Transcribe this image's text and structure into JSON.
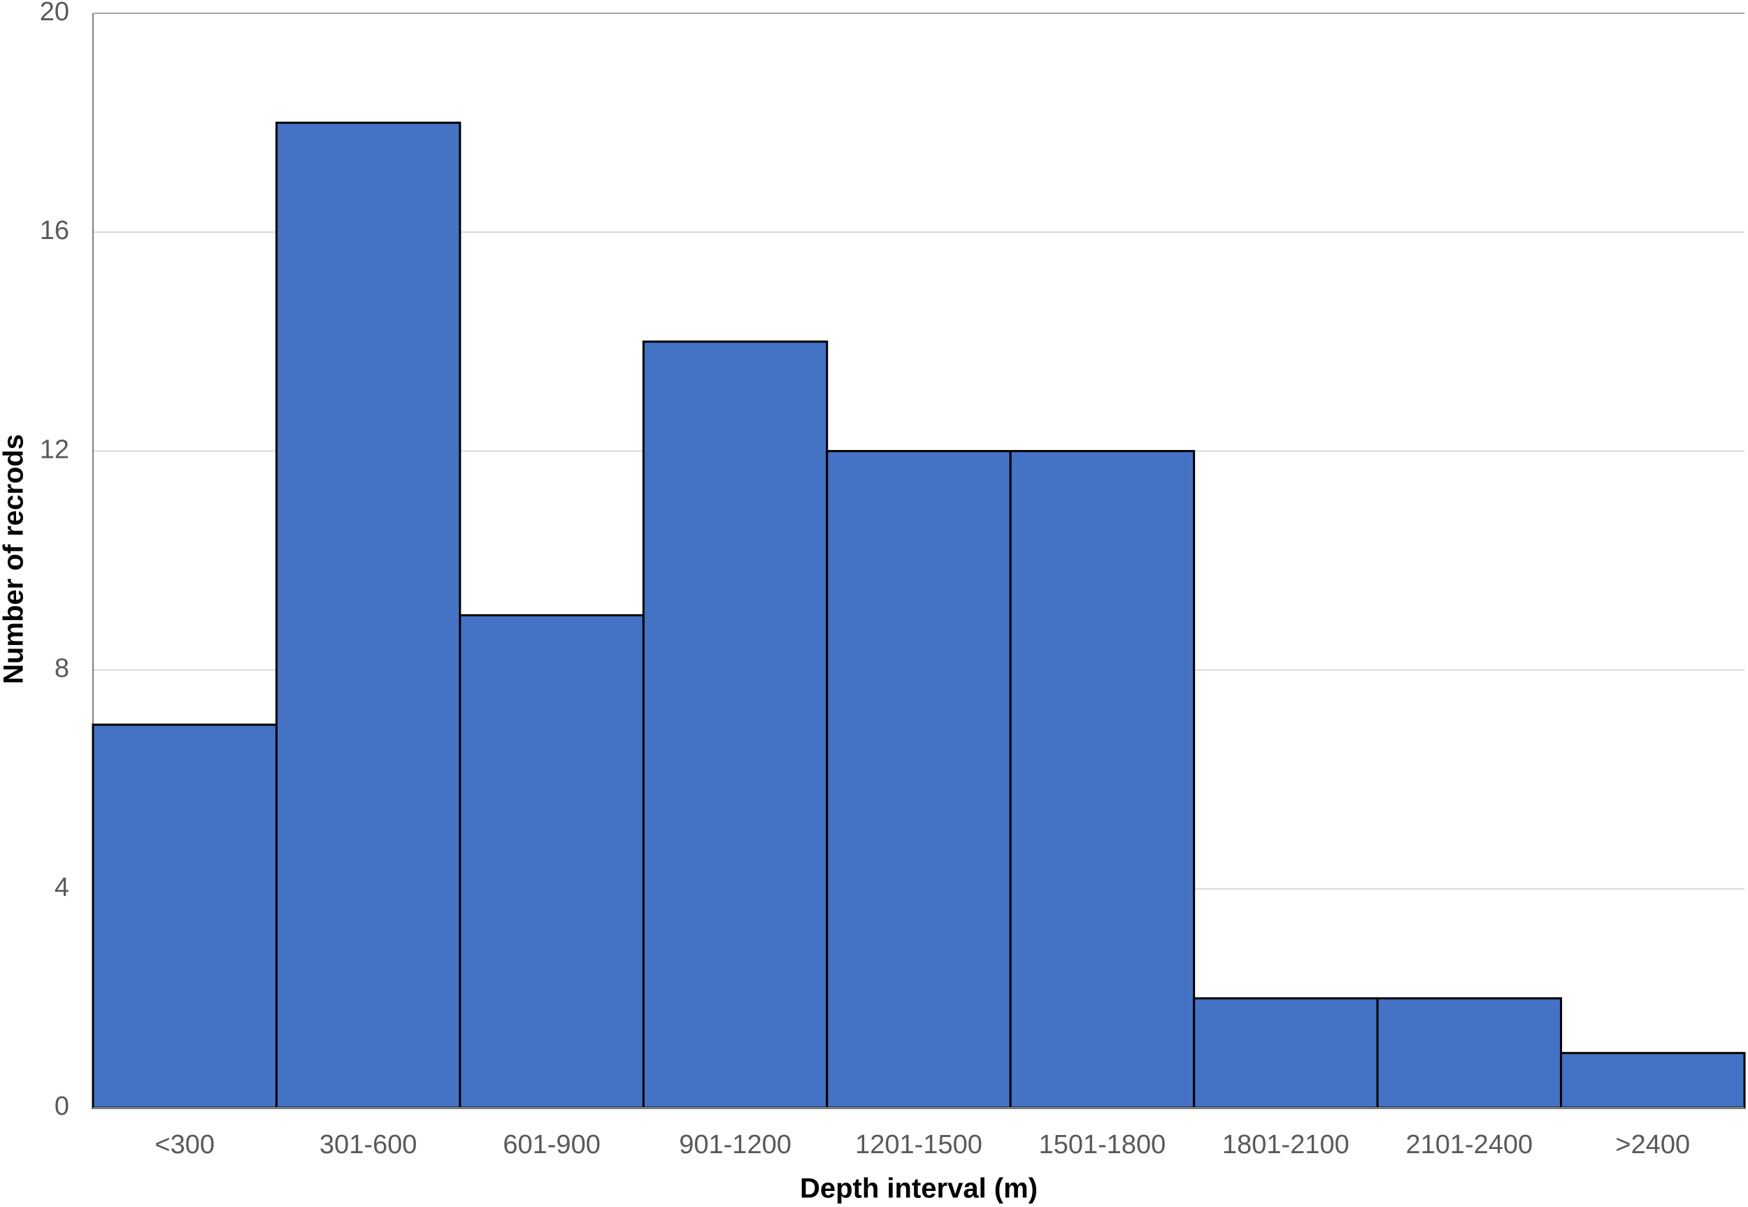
{
  "chart_data": {
    "type": "bar",
    "x_label": "Depth interval (m)",
    "y_label": "Number of recrods",
    "categories": [
      "<300",
      "301-600",
      "601-900",
      "901-1200",
      "1201-1500",
      "1501-1800",
      "1801-2100",
      "2101-2400",
      ">2400"
    ],
    "values": [
      7,
      18,
      9,
      14,
      12,
      12,
      2,
      2,
      1
    ],
    "color": "#4472c4",
    "edge_color": "#000000",
    "ylim": [
      0,
      20
    ],
    "yticks": [
      0,
      4,
      8,
      12,
      16,
      20
    ],
    "grid": true
  }
}
